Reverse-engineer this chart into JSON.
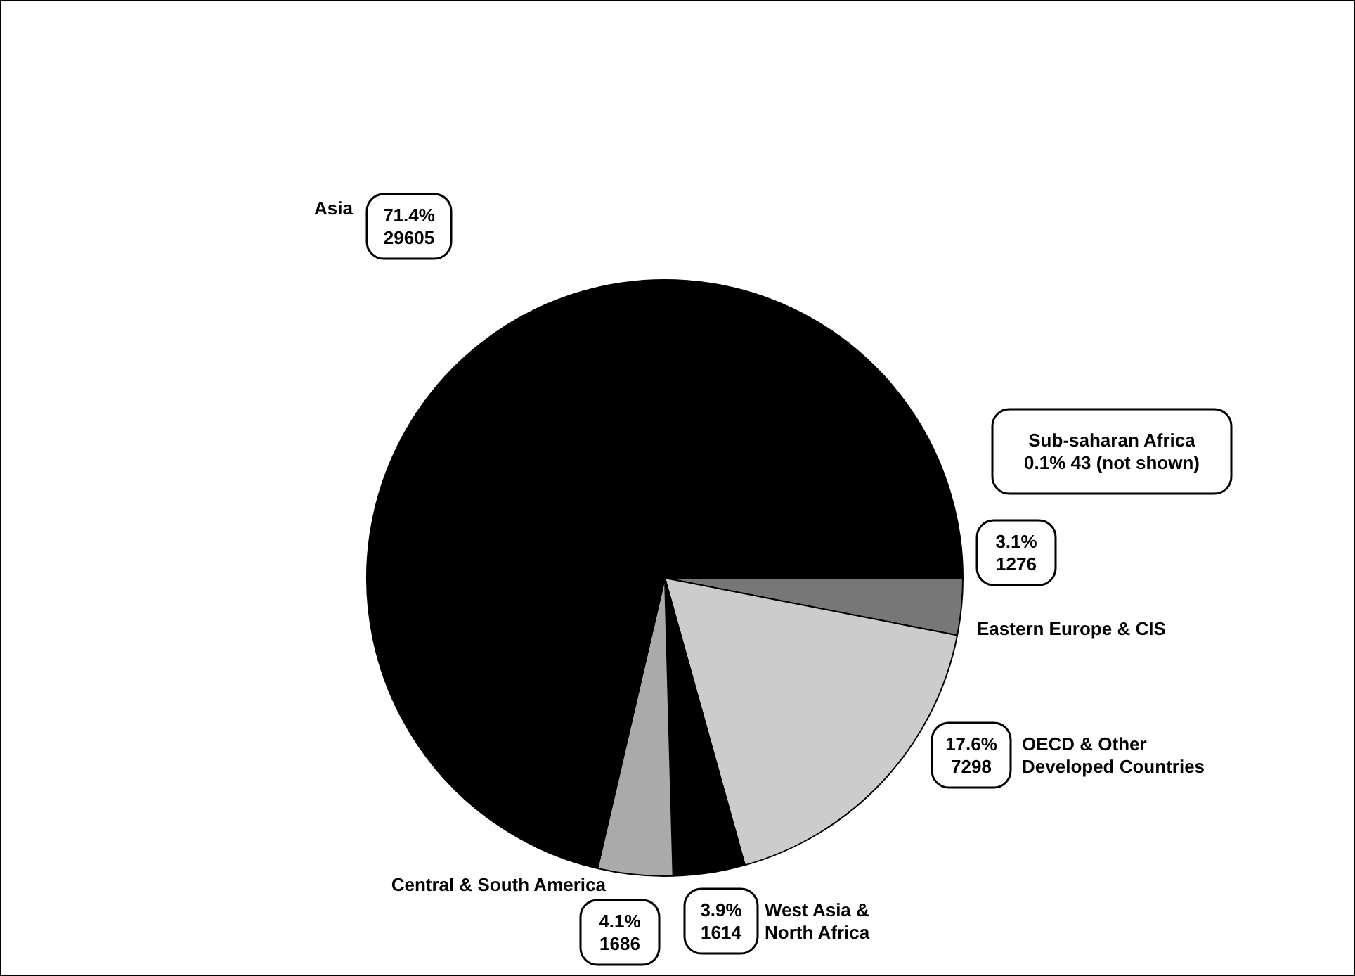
{
  "chart_data": {
    "type": "pie",
    "categories": [
      "Eastern Europe & CIS",
      "OECD & Other\nDeveloped Countries",
      "West Asia &\nNorth Africa",
      "Central & South America",
      "Asia"
    ],
    "values": [
      1276,
      7298,
      1614,
      1686,
      29605
    ],
    "colors": [
      "#777777",
      "#cccccc",
      "#000000",
      "#aaaaaa",
      "#000000"
    ],
    "value_labels": [
      "3.1%\n1276",
      "17.6%\n7298",
      "3.9%\n1614",
      "4.1%\n1686",
      "71.4%\n29605"
    ],
    "annotations": [
      "Sub-saharan Africa\n0.1% 43 (not shown)"
    ]
  }
}
